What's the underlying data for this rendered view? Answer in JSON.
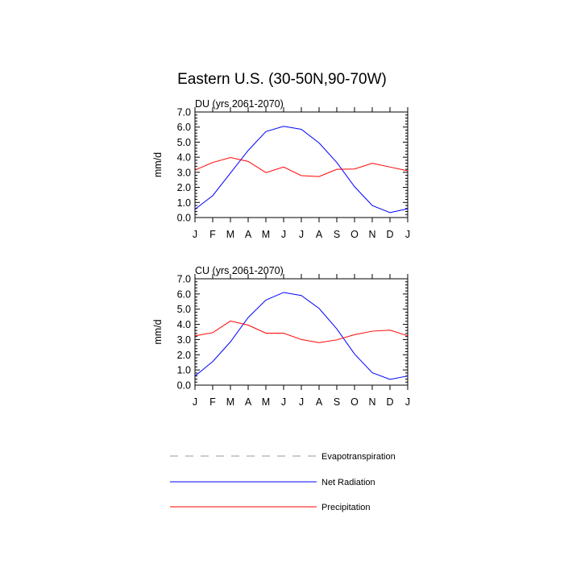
{
  "title": "Eastern U.S. (30-50N,90-70W)",
  "chart_data": [
    {
      "type": "line",
      "title": "DU (yrs 2061-2070)",
      "ylabel": "mm/d",
      "xlabel": "",
      "categories": [
        "J",
        "F",
        "M",
        "A",
        "M",
        "J",
        "J",
        "A",
        "S",
        "O",
        "N",
        "D",
        "J"
      ],
      "ylim": [
        0,
        7
      ],
      "yticks": [
        "0.0",
        "1.0",
        "2.0",
        "3.0",
        "4.0",
        "5.0",
        "6.0",
        "7.0"
      ],
      "series": [
        {
          "name": "Net Radiation",
          "color": "#0000ff",
          "values": [
            0.55,
            1.45,
            2.95,
            4.45,
            5.7,
            6.05,
            5.85,
            4.95,
            3.65,
            2.05,
            0.8,
            0.33,
            0.58
          ]
        },
        {
          "name": "Precipitation",
          "color": "#ff0000",
          "values": [
            3.15,
            3.65,
            3.98,
            3.72,
            2.98,
            3.35,
            2.78,
            2.72,
            3.2,
            3.22,
            3.6,
            3.35,
            3.1
          ]
        }
      ]
    },
    {
      "type": "line",
      "title": "CU (yrs 2061-2070)",
      "ylabel": "mm/d",
      "xlabel": "",
      "categories": [
        "J",
        "F",
        "M",
        "A",
        "M",
        "J",
        "J",
        "A",
        "S",
        "O",
        "N",
        "D",
        "J"
      ],
      "ylim": [
        0,
        7
      ],
      "yticks": [
        "0.0",
        "1.0",
        "2.0",
        "3.0",
        "4.0",
        "5.0",
        "6.0",
        "7.0"
      ],
      "series": [
        {
          "name": "Net Radiation",
          "color": "#0000ff",
          "values": [
            0.6,
            1.55,
            2.85,
            4.45,
            5.6,
            6.1,
            5.9,
            5.05,
            3.7,
            2.05,
            0.82,
            0.38,
            0.6
          ]
        },
        {
          "name": "Precipitation",
          "color": "#ff0000",
          "values": [
            3.25,
            3.45,
            4.22,
            3.95,
            3.42,
            3.42,
            3.0,
            2.8,
            2.98,
            3.32,
            3.55,
            3.62,
            3.25
          ]
        }
      ]
    }
  ],
  "legend": [
    {
      "label": "Evapotranspiration",
      "color": "#9a9a9a",
      "style": "dashed",
      "icon": "dashed-line"
    },
    {
      "label": "Net Radiation",
      "color": "#0000ff",
      "style": "solid",
      "icon": "solid-line"
    },
    {
      "label": "Precipitation",
      "color": "#ff0000",
      "style": "solid",
      "icon": "solid-line"
    }
  ]
}
